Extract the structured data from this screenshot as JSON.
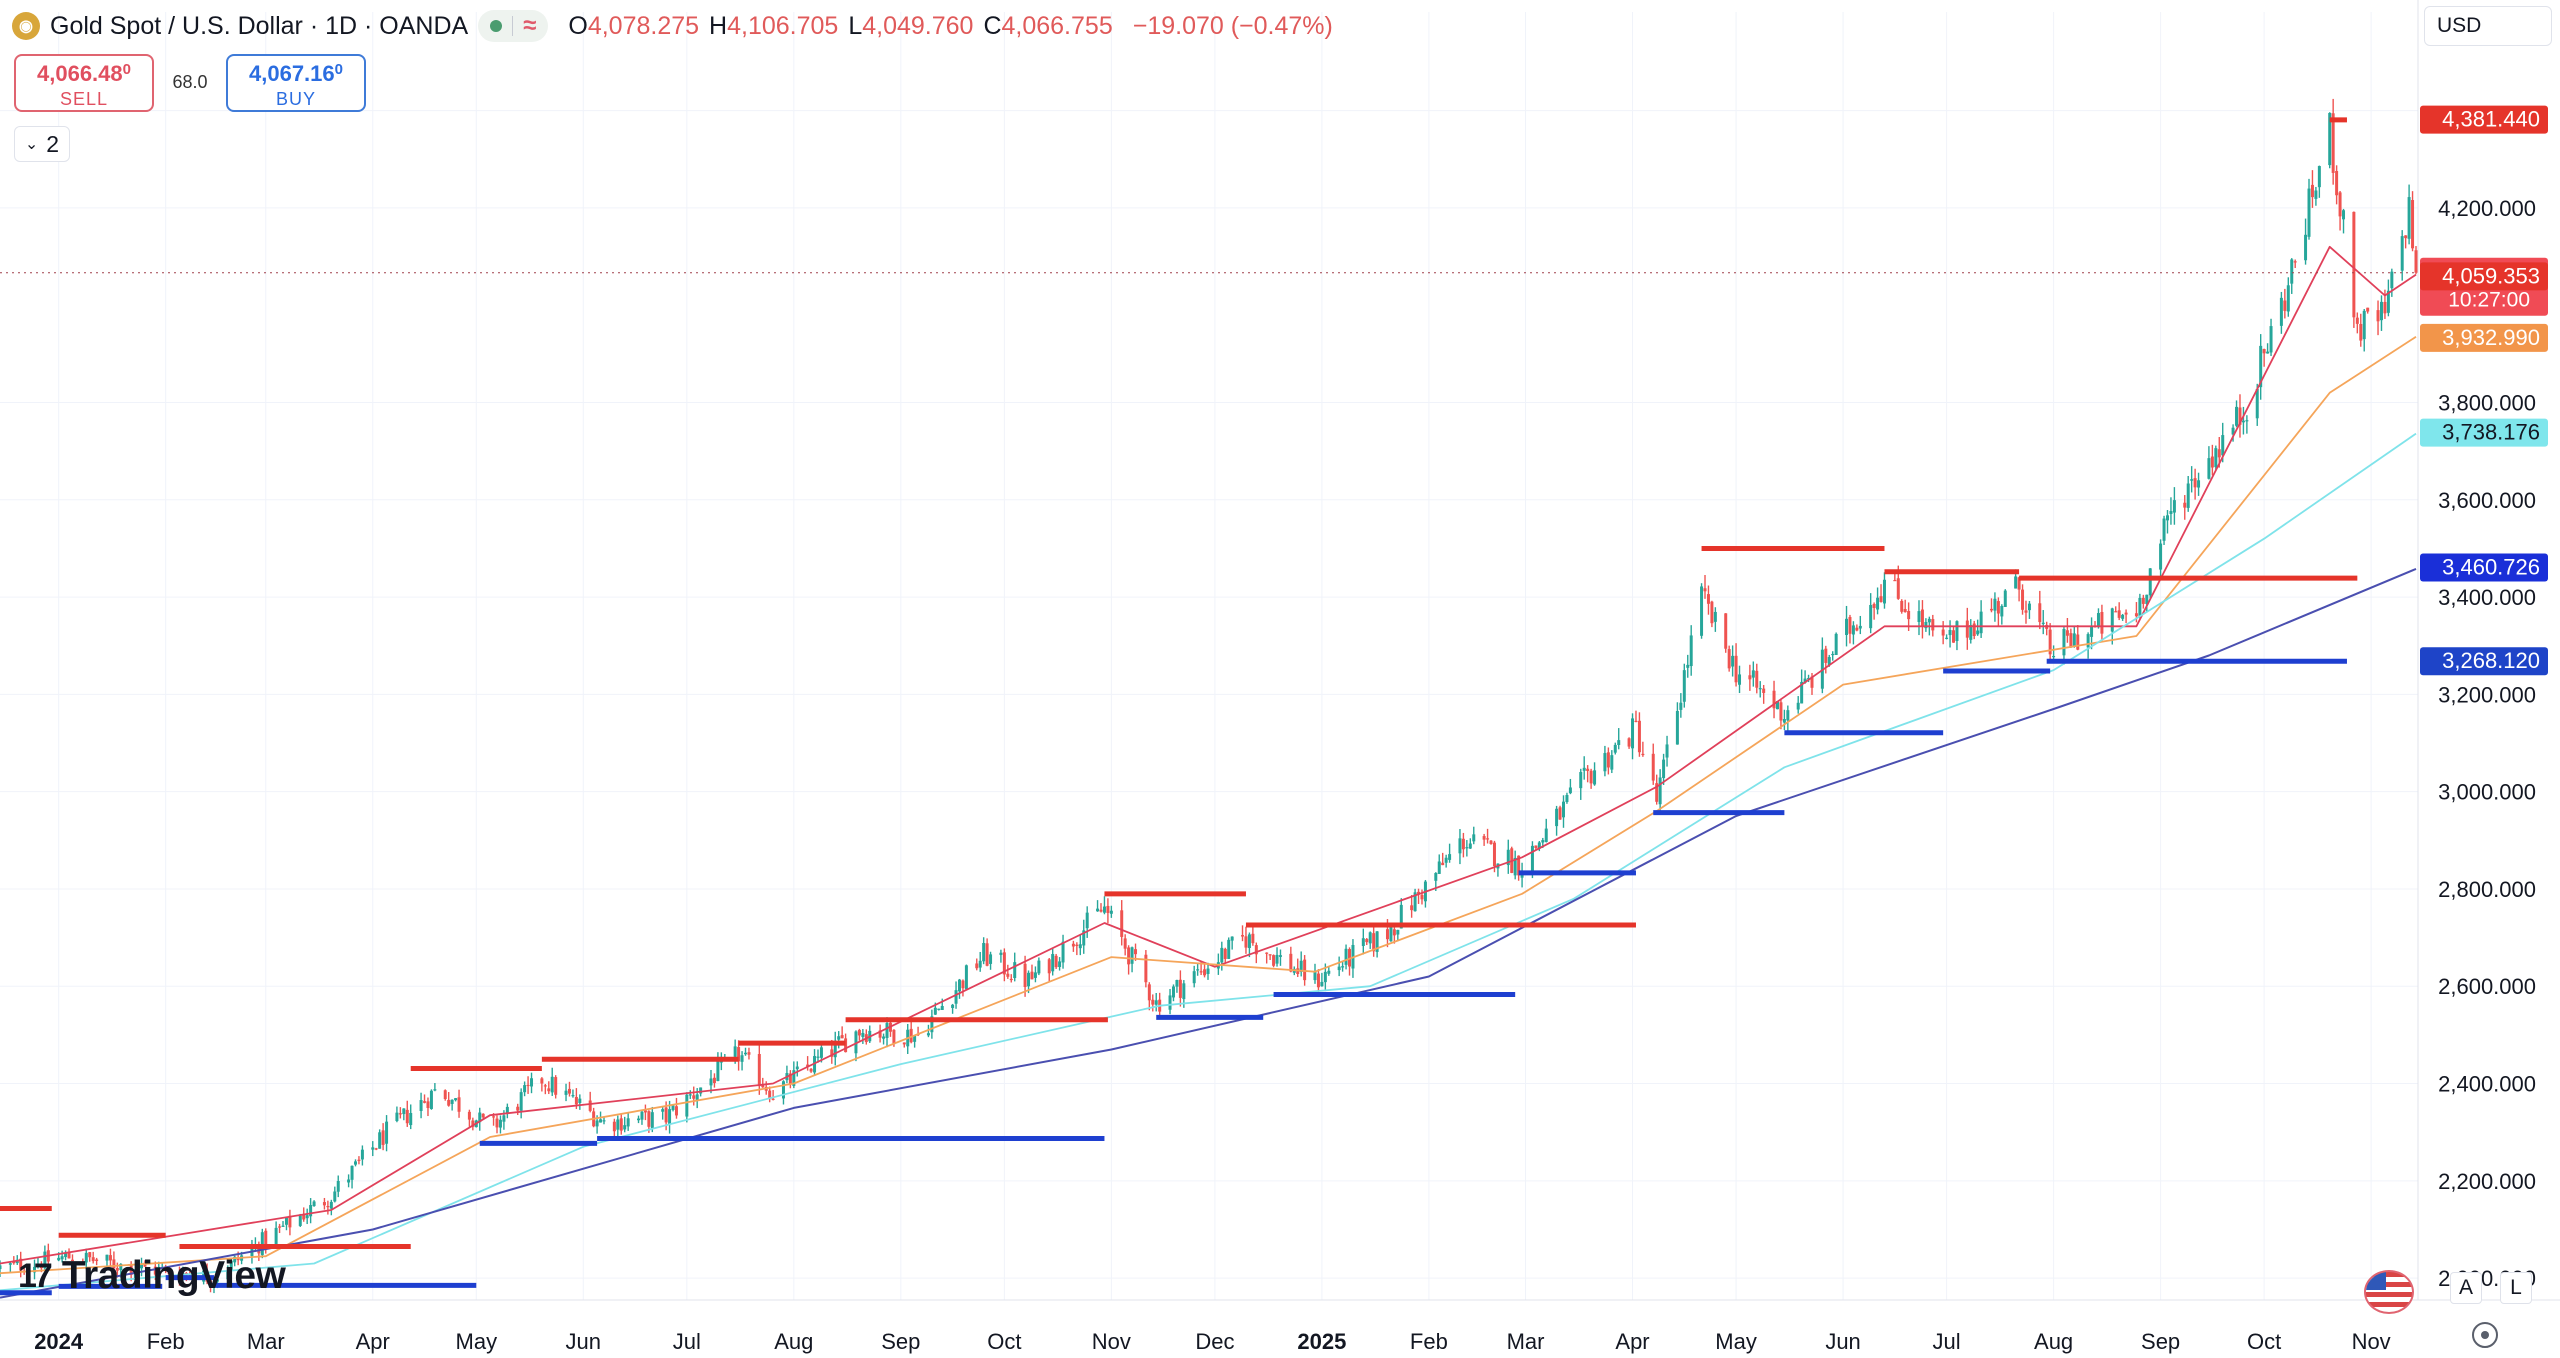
{
  "header": {
    "symbol_title": "Gold Spot / U.S. Dollar · 1D · OANDA",
    "approx_symbol": "≈",
    "ohlc": [
      {
        "k": "O",
        "v": "4,078.275"
      },
      {
        "k": "H",
        "v": "4,106.705"
      },
      {
        "k": "L",
        "v": "4,049.760"
      },
      {
        "k": "C",
        "v": "4,066.755"
      }
    ],
    "change": "−19.070 (−0.47%)"
  },
  "trade": {
    "sell_price": "4,066.48",
    "sell_sup": "0",
    "sell_label": "SELL",
    "spread": "68.0",
    "buy_price": "4,067.16",
    "buy_sup": "0",
    "buy_label": "BUY"
  },
  "collapse_count": "2",
  "currency": "USD",
  "brand": {
    "logo": "17",
    "name": "TradingView"
  },
  "bottom_buttons": {
    "auto": "A",
    "log": "L"
  },
  "colors": {
    "up": "#26a69a",
    "down": "#ef5350",
    "sma_fast": "#e0405a",
    "sma_mid": "#f5a55a",
    "sma_slow": "#7fe3ea",
    "sma_200": "#4a4fb0",
    "resistance": "#e5342a",
    "support": "#1e3fd0"
  },
  "chart_data": {
    "type": "candlestick",
    "title": "Gold Spot / U.S. Dollar · 1D · OANDA",
    "x_start": "2023-12-15",
    "x_end": "2025-11-14",
    "ylim": [
      1955,
      4500
    ],
    "y_ticks": [
      2000,
      2200,
      2400,
      2600,
      2800,
      3000,
      3200,
      3400,
      3600,
      3800,
      4200
    ],
    "y_tick_labels": [
      "2,000.000",
      "2,200.000",
      "2,400.000",
      "2,600.000",
      "2,800.000",
      "3,000.000",
      "3,200.000",
      "3,400.000",
      "3,600.000",
      "3,800.000",
      "4,200.000"
    ],
    "x_ticks": [
      {
        "date": "2024-01-01",
        "label": "2024",
        "bold": true
      },
      {
        "date": "2024-02-01",
        "label": "Feb"
      },
      {
        "date": "2024-03-01",
        "label": "Mar"
      },
      {
        "date": "2024-04-01",
        "label": "Apr"
      },
      {
        "date": "2024-05-01",
        "label": "May"
      },
      {
        "date": "2024-06-01",
        "label": "Jun"
      },
      {
        "date": "2024-07-01",
        "label": "Jul"
      },
      {
        "date": "2024-08-01",
        "label": "Aug"
      },
      {
        "date": "2024-09-01",
        "label": "Sep"
      },
      {
        "date": "2024-10-01",
        "label": "Oct"
      },
      {
        "date": "2024-11-01",
        "label": "Nov"
      },
      {
        "date": "2024-12-01",
        "label": "Dec"
      },
      {
        "date": "2025-01-01",
        "label": "2025",
        "bold": true
      },
      {
        "date": "2025-02-01",
        "label": "Feb"
      },
      {
        "date": "2025-03-01",
        "label": "Mar"
      },
      {
        "date": "2025-04-01",
        "label": "Apr"
      },
      {
        "date": "2025-05-01",
        "label": "May"
      },
      {
        "date": "2025-06-01",
        "label": "Jun"
      },
      {
        "date": "2025-07-01",
        "label": "Jul"
      },
      {
        "date": "2025-08-01",
        "label": "Aug"
      },
      {
        "date": "2025-09-01",
        "label": "Sep"
      },
      {
        "date": "2025-10-01",
        "label": "Oct"
      },
      {
        "date": "2025-11-01",
        "label": "Nov"
      }
    ],
    "close_path": [
      [
        "2023-12-15",
        2020
      ],
      [
        "2024-01-05",
        2045
      ],
      [
        "2024-01-20",
        2025
      ],
      [
        "2024-02-15",
        2002
      ],
      [
        "2024-03-01",
        2080
      ],
      [
        "2024-03-20",
        2170
      ],
      [
        "2024-04-05",
        2300
      ],
      [
        "2024-04-20",
        2390
      ],
      [
        "2024-05-05",
        2305
      ],
      [
        "2024-05-20",
        2410
      ],
      [
        "2024-06-07",
        2320
      ],
      [
        "2024-06-25",
        2330
      ],
      [
        "2024-07-16",
        2460
      ],
      [
        "2024-07-26",
        2380
      ],
      [
        "2024-08-20",
        2510
      ],
      [
        "2024-09-06",
        2500
      ],
      [
        "2024-09-25",
        2665
      ],
      [
        "2024-10-08",
        2610
      ],
      [
        "2024-10-30",
        2760
      ],
      [
        "2024-11-14",
        2565
      ],
      [
        "2024-12-10",
        2700
      ],
      [
        "2024-12-30",
        2610
      ],
      [
        "2025-01-20",
        2710
      ],
      [
        "2025-02-11",
        2900
      ],
      [
        "2025-02-28",
        2850
      ],
      [
        "2025-03-20",
        3040
      ],
      [
        "2025-04-02",
        3130
      ],
      [
        "2025-04-08",
        2980
      ],
      [
        "2025-04-21",
        3400
      ],
      [
        "2025-05-01",
        3250
      ],
      [
        "2025-05-15",
        3160
      ],
      [
        "2025-06-13",
        3430
      ],
      [
        "2025-06-30",
        3300
      ],
      [
        "2025-07-22",
        3420
      ],
      [
        "2025-07-31",
        3290
      ],
      [
        "2025-08-25",
        3375
      ],
      [
        "2025-09-05",
        3590
      ],
      [
        "2025-09-25",
        3780
      ],
      [
        "2025-10-08",
        4040
      ],
      [
        "2025-10-20",
        4360
      ],
      [
        "2025-10-28",
        3950
      ],
      [
        "2025-11-05",
        3980
      ],
      [
        "2025-11-12",
        4200
      ],
      [
        "2025-11-14",
        4066.755
      ]
    ],
    "sma_series": [
      {
        "key": "sma_fast",
        "points": [
          [
            "2023-12-15",
            2030
          ],
          [
            "2024-03-20",
            2140
          ],
          [
            "2024-05-05",
            2335
          ],
          [
            "2024-07-26",
            2400
          ],
          [
            "2024-10-30",
            2730
          ],
          [
            "2024-12-01",
            2640
          ],
          [
            "2025-02-28",
            2865
          ],
          [
            "2025-04-08",
            3010
          ],
          [
            "2025-06-13",
            3340
          ],
          [
            "2025-08-25",
            3340
          ],
          [
            "2025-10-20",
            4120
          ],
          [
            "2025-11-05",
            4020
          ],
          [
            "2025-11-14",
            4063
          ]
        ]
      },
      {
        "key": "sma_mid",
        "points": [
          [
            "2023-12-15",
            2010
          ],
          [
            "2024-03-01",
            2045
          ],
          [
            "2024-05-05",
            2290
          ],
          [
            "2024-08-01",
            2400
          ],
          [
            "2024-11-01",
            2660
          ],
          [
            "2024-12-30",
            2630
          ],
          [
            "2025-02-28",
            2790
          ],
          [
            "2025-04-08",
            2960
          ],
          [
            "2025-06-01",
            3220
          ],
          [
            "2025-08-25",
            3320
          ],
          [
            "2025-10-20",
            3820
          ],
          [
            "2025-11-14",
            3935
          ]
        ]
      },
      {
        "key": "sma_slow",
        "points": [
          [
            "2023-12-15",
            1975
          ],
          [
            "2024-03-15",
            2030
          ],
          [
            "2024-06-01",
            2270
          ],
          [
            "2024-09-01",
            2440
          ],
          [
            "2024-11-15",
            2560
          ],
          [
            "2025-01-15",
            2600
          ],
          [
            "2025-03-15",
            2780
          ],
          [
            "2025-05-15",
            3050
          ],
          [
            "2025-08-01",
            3250
          ],
          [
            "2025-10-01",
            3520
          ],
          [
            "2025-11-14",
            3736
          ]
        ]
      },
      {
        "key": "sma_200",
        "points": [
          [
            "2023-12-15",
            1960
          ],
          [
            "2024-04-01",
            2100
          ],
          [
            "2024-08-01",
            2350
          ],
          [
            "2024-11-01",
            2470
          ],
          [
            "2025-02-01",
            2620
          ],
          [
            "2025-05-01",
            2950
          ],
          [
            "2025-08-01",
            3170
          ],
          [
            "2025-09-15",
            3280
          ],
          [
            "2025-11-14",
            3458
          ]
        ]
      }
    ],
    "levels": [
      {
        "kind": "resistance",
        "from": "2023-12-15",
        "to": "2023-12-30",
        "price": 2143
      },
      {
        "kind": "resistance",
        "from": "2024-01-01",
        "to": "2024-02-01",
        "price": 2088
      },
      {
        "kind": "resistance",
        "from": "2024-02-05",
        "to": "2024-04-12",
        "price": 2065
      },
      {
        "kind": "resistance",
        "from": "2024-04-12",
        "to": "2024-05-20",
        "price": 2431
      },
      {
        "kind": "resistance",
        "from": "2024-05-20",
        "to": "2024-07-16",
        "price": 2450
      },
      {
        "kind": "resistance",
        "from": "2024-07-16",
        "to": "2024-08-16",
        "price": 2483
      },
      {
        "kind": "resistance",
        "from": "2024-08-16",
        "to": "2024-10-31",
        "price": 2531
      },
      {
        "kind": "resistance",
        "from": "2024-10-30",
        "to": "2024-12-10",
        "price": 2790
      },
      {
        "kind": "resistance",
        "from": "2024-12-10",
        "to": "2025-04-02",
        "price": 2726
      },
      {
        "kind": "resistance",
        "from": "2025-04-21",
        "to": "2025-06-13",
        "price": 3500
      },
      {
        "kind": "resistance",
        "from": "2025-06-13",
        "to": "2025-07-22",
        "price": 3452
      },
      {
        "kind": "resistance",
        "from": "2025-07-22",
        "to": "2025-10-28",
        "price": 3439
      },
      {
        "kind": "resistance",
        "from": "2025-10-20",
        "to": "2025-10-25",
        "price": 4381
      },
      {
        "kind": "support",
        "from": "2023-12-15",
        "to": "2023-12-30",
        "price": 1970
      },
      {
        "kind": "support",
        "from": "2024-01-01",
        "to": "2024-01-31",
        "price": 1983
      },
      {
        "kind": "support",
        "from": "2024-02-01",
        "to": "2024-02-15",
        "price": 2001
      },
      {
        "kind": "support",
        "from": "2024-02-14",
        "to": "2024-05-01",
        "price": 1985
      },
      {
        "kind": "support",
        "from": "2024-05-02",
        "to": "2024-06-05",
        "price": 2277
      },
      {
        "kind": "support",
        "from": "2024-06-05",
        "to": "2024-10-30",
        "price": 2287
      },
      {
        "kind": "support",
        "from": "2024-11-14",
        "to": "2024-12-15",
        "price": 2536
      },
      {
        "kind": "support",
        "from": "2024-12-18",
        "to": "2025-02-26",
        "price": 2583
      },
      {
        "kind": "support",
        "from": "2025-02-27",
        "to": "2025-04-02",
        "price": 2833
      },
      {
        "kind": "support",
        "from": "2025-04-07",
        "to": "2025-05-15",
        "price": 2957
      },
      {
        "kind": "support",
        "from": "2025-05-15",
        "to": "2025-06-30",
        "price": 3121
      },
      {
        "kind": "support",
        "from": "2025-06-30",
        "to": "2025-07-31",
        "price": 3248
      },
      {
        "kind": "support",
        "from": "2025-07-30",
        "to": "2025-10-25",
        "price": 3268
      }
    ],
    "price_badges": [
      {
        "price": 4381.44,
        "text": "4,381.440",
        "bg": "#e5342a",
        "fg": "#ffffff"
      },
      {
        "price": 4066.755,
        "text": "4,066.755",
        "text2": "10:27:00",
        "bg": "#f04b55",
        "fg": "#ffffff",
        "tall": true
      },
      {
        "price": 4059.353,
        "text": "4,059.353",
        "bg": "#e5342a",
        "fg": "#ffffff"
      },
      {
        "price": 3932.99,
        "text": "3,932.990",
        "bg": "#f2954a",
        "fg": "#ffffff"
      },
      {
        "price": 3738.176,
        "text": "3,738.176",
        "bg": "#7fe6ec",
        "fg": "#131722"
      },
      {
        "price": 3460.726,
        "text": "3,460.726",
        "bg": "#1a2fd8",
        "fg": "#ffffff"
      },
      {
        "price": 3268.12,
        "text": "3,268.120",
        "bg": "#1e44c8",
        "fg": "#ffffff"
      }
    ],
    "current_price": 4066.755
  }
}
